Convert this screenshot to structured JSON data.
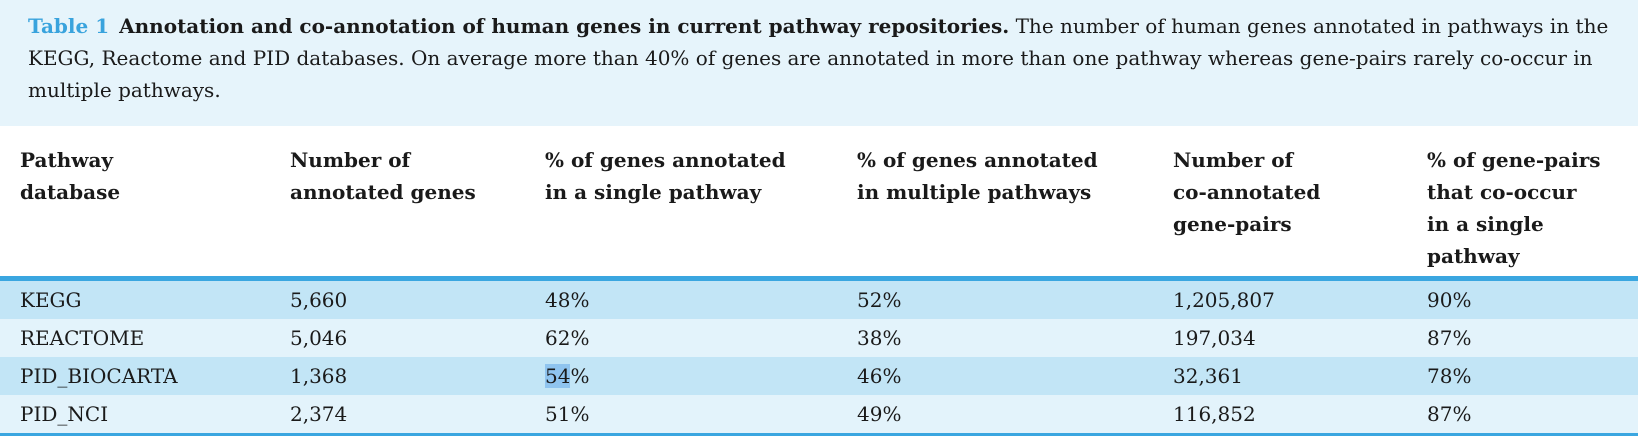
{
  "caption": {
    "label": "Table 1",
    "title": "Annotation and co-annotation of human genes in current pathway repositories.",
    "body": "The number of human genes annotated in pathways in the KEGG, Reactome and PID databases. On average more than 40% of genes are annotated in more than one pathway whereas gene-pairs rarely co-occur in multiple pathways."
  },
  "table": {
    "headers": [
      "Pathway\ndatabase",
      "Number of\nannotated genes",
      "% of genes annotated\nin a single pathway",
      "% of genes annotated\nin multiple pathways",
      "Number of\nco-annotated\ngene-pairs",
      "% of gene-pairs\nthat co-occur\nin a single pathway"
    ],
    "rows": [
      [
        "KEGG",
        "5,660",
        "48%",
        "52%",
        "1,205,807",
        "90%"
      ],
      [
        "REACTOME",
        "5,046",
        "62%",
        "38%",
        "197,034",
        "87%"
      ],
      [
        "PID_BIOCARTA",
        "1,368",
        "54%",
        "46%",
        "32,361",
        "78%"
      ],
      [
        "PID_NCI",
        "2,374",
        "51%",
        "49%",
        "116,852",
        "87%"
      ]
    ]
  },
  "selection": {
    "row": 2,
    "col": 2,
    "selected_text": "54",
    "rest_text": "%",
    "highlight_color": "#8fc4ef"
  }
}
